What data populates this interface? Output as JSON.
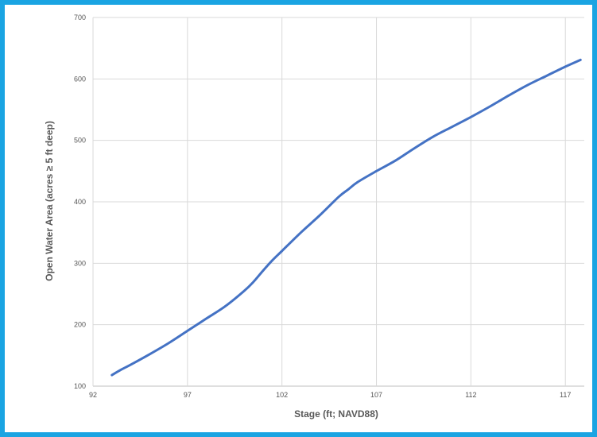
{
  "chart_data": {
    "type": "line",
    "title": "",
    "xlabel": "Stage (ft; NAVD88)",
    "ylabel": "Open Water Area (acres ≥ 5 ft deep)",
    "xlim": [
      92,
      118
    ],
    "ylim": [
      100,
      700
    ],
    "xticks": [
      92,
      97,
      102,
      107,
      112,
      117
    ],
    "yticks": [
      100,
      200,
      300,
      400,
      500,
      600,
      700
    ],
    "grid": true,
    "legend": "none",
    "series_color": "#4472c4",
    "series": [
      {
        "x": [
          93,
          93.5,
          94,
          95,
          96,
          97,
          98,
          99,
          100,
          100.5,
          101,
          101.5,
          102,
          103,
          104,
          105,
          105.5,
          106,
          107,
          108,
          109,
          110,
          111,
          112,
          113,
          114,
          115,
          116,
          117,
          117.8
        ],
        "y": [
          118,
          127,
          135,
          152,
          170,
          190,
          210,
          230,
          255,
          270,
          288,
          305,
          320,
          350,
          378,
          408,
          420,
          432,
          450,
          467,
          487,
          506,
          522,
          538,
          555,
          573,
          590,
          605,
          620,
          631
        ]
      }
    ]
  }
}
